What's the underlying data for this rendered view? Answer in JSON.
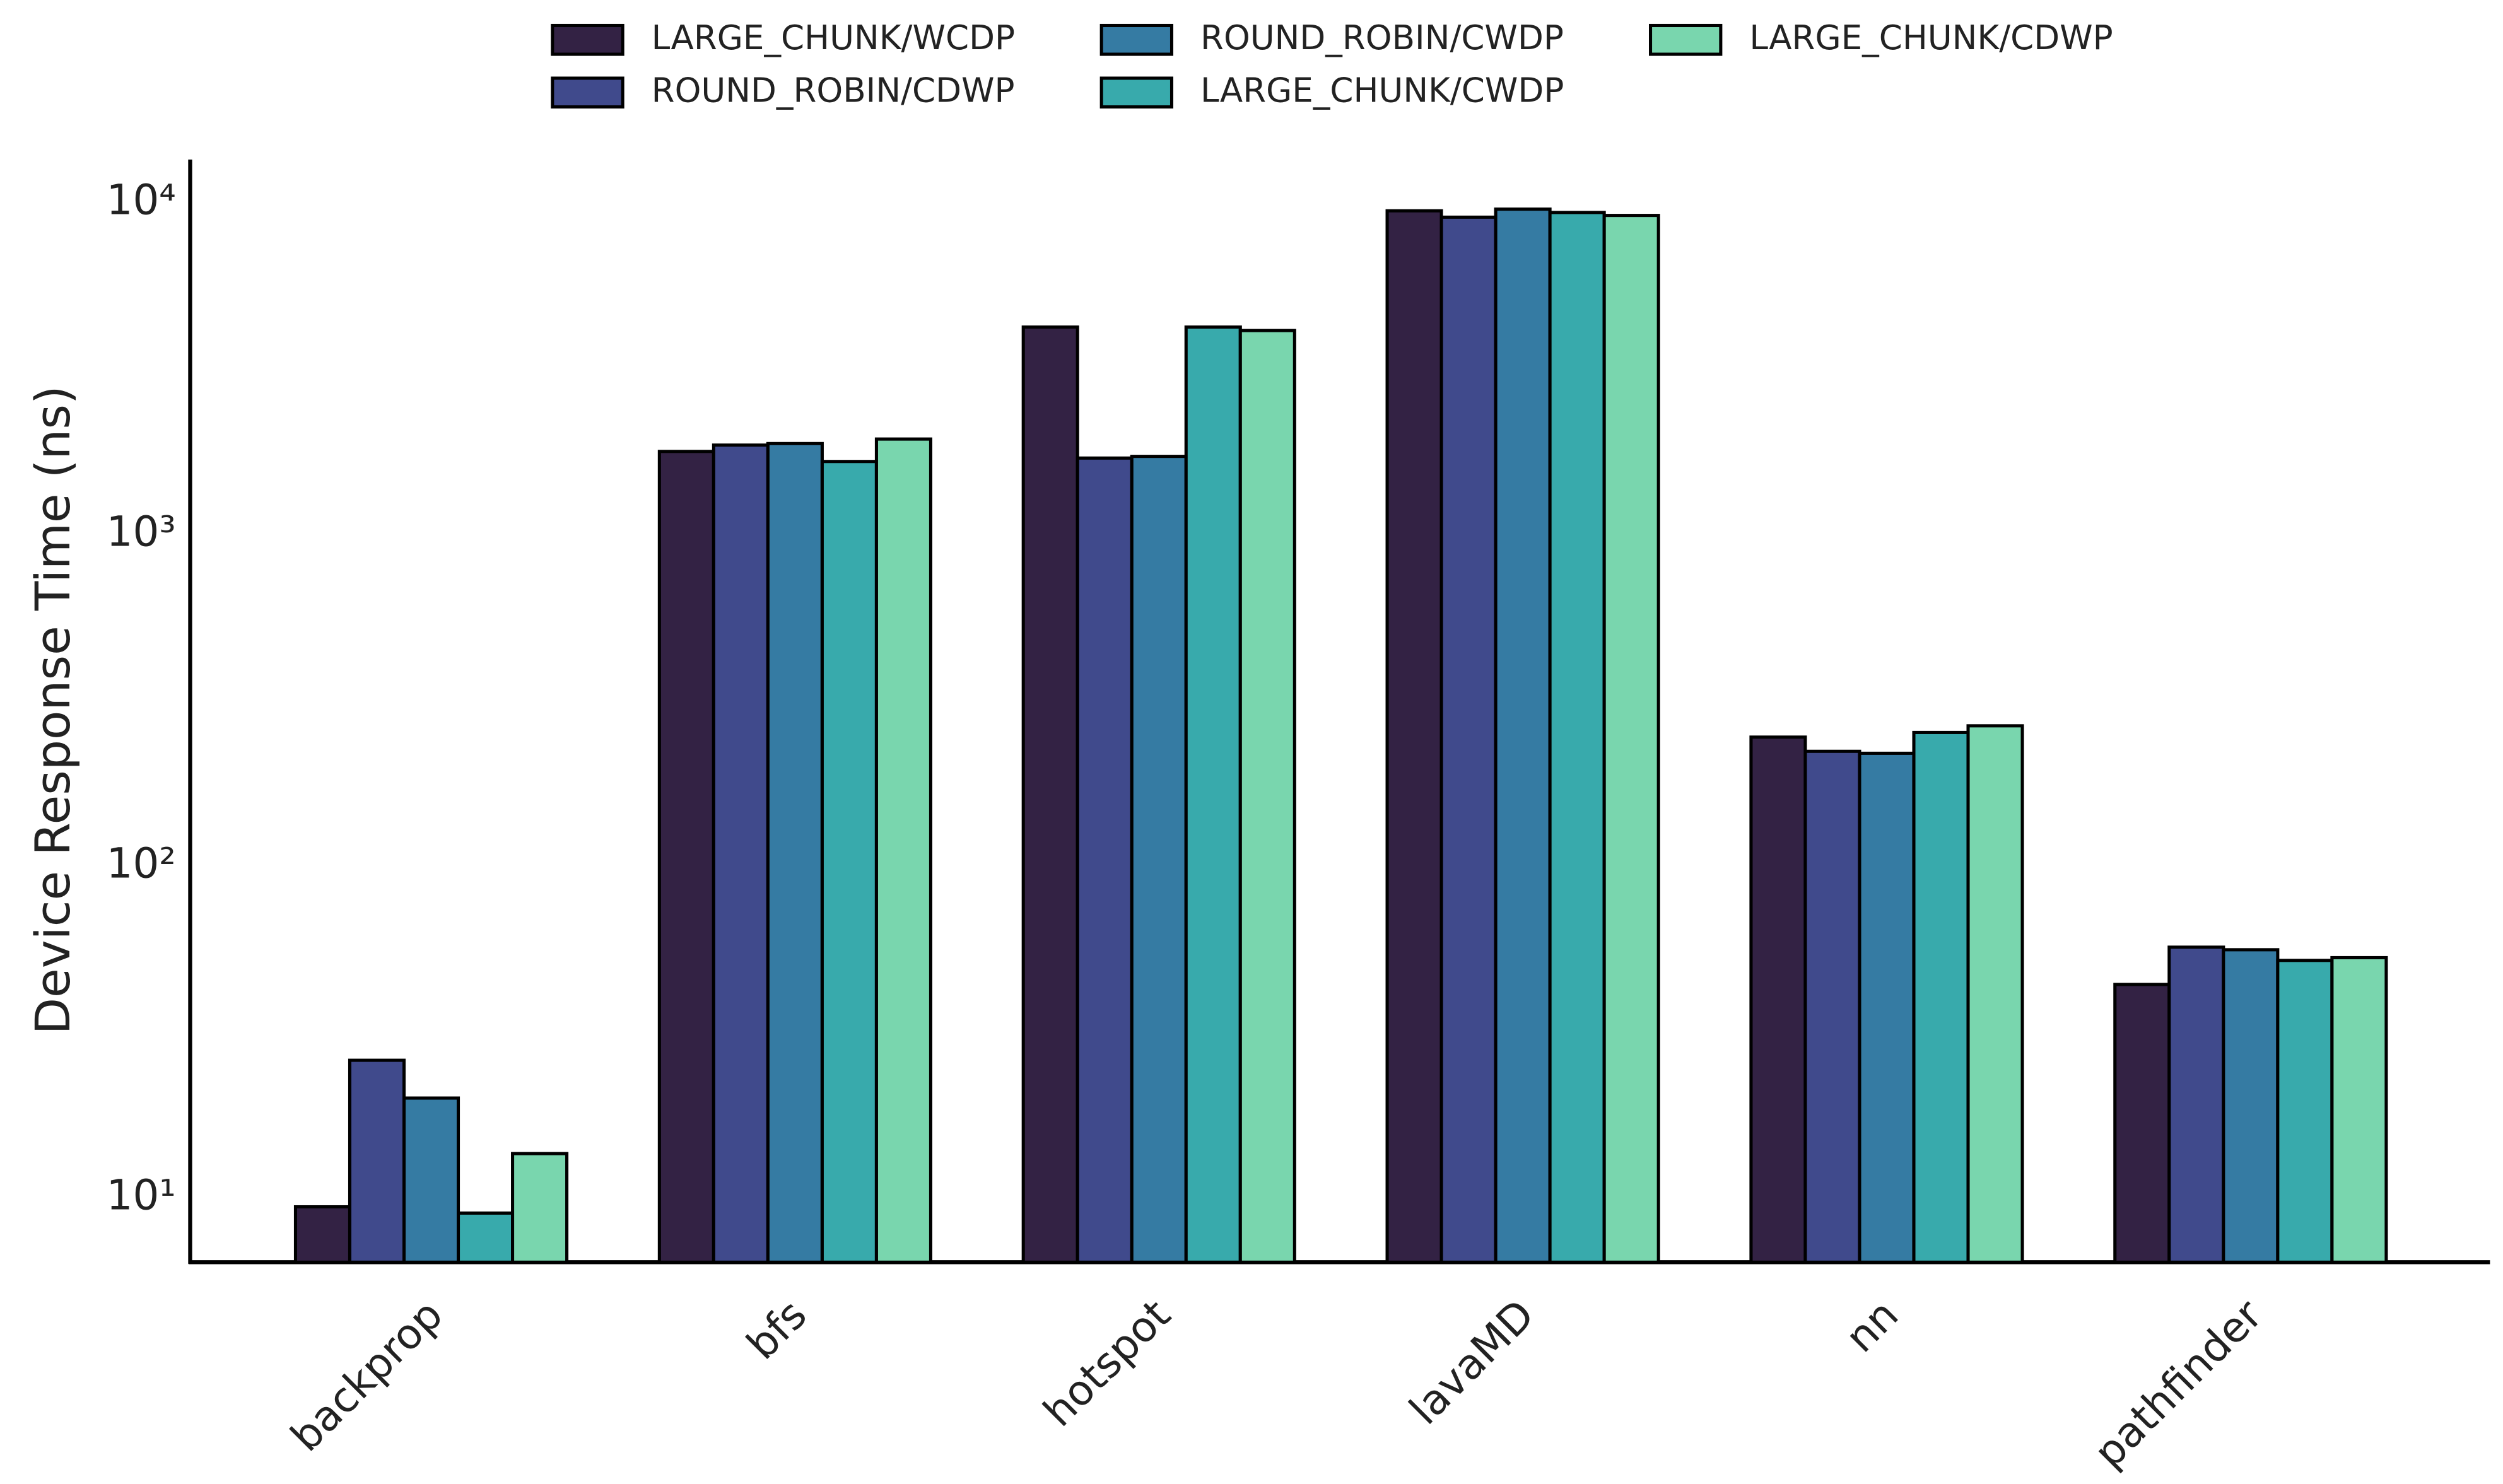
{
  "chart_data": {
    "type": "bar",
    "y_label": "Device Response Time (ns)",
    "categories": [
      "backprop",
      "bfs",
      "hotspot",
      "lavaMD",
      "nn",
      "pathfinder"
    ],
    "series": [
      {
        "name": "LARGE_CHUNK/WCDP",
        "color": "#332244",
        "values": [
          9.4,
          1780,
          4220,
          9460,
          245,
          44
        ]
      },
      {
        "name": "ROUND_ROBIN/CDWP",
        "color": "#404a8c",
        "values": [
          26,
          1860,
          1700,
          9050,
          222,
          57
        ]
      },
      {
        "name": "ROUND_ROBIN/CWDP",
        "color": "#357ba3",
        "values": [
          20,
          1880,
          1720,
          9570,
          219,
          56
        ]
      },
      {
        "name": "LARGE_CHUNK/CWDP",
        "color": "#38aaac",
        "values": [
          9.0,
          1660,
          4220,
          9350,
          253,
          52
        ]
      },
      {
        "name": "LARGE_CHUNK/CDWP",
        "color": "#79d6ae",
        "values": [
          13.6,
          1940,
          4120,
          9160,
          265,
          53
        ]
      }
    ],
    "ylim": [
      6.4,
      13500
    ],
    "yticks": [
      {
        "value": 10,
        "label": "10¹"
      },
      {
        "value": 100,
        "label": "10²"
      },
      {
        "value": 1000,
        "label": "10³"
      },
      {
        "value": 10000,
        "label": "10⁴"
      }
    ],
    "log_scale_y": true,
    "grid": false,
    "legend_position": "top"
  }
}
